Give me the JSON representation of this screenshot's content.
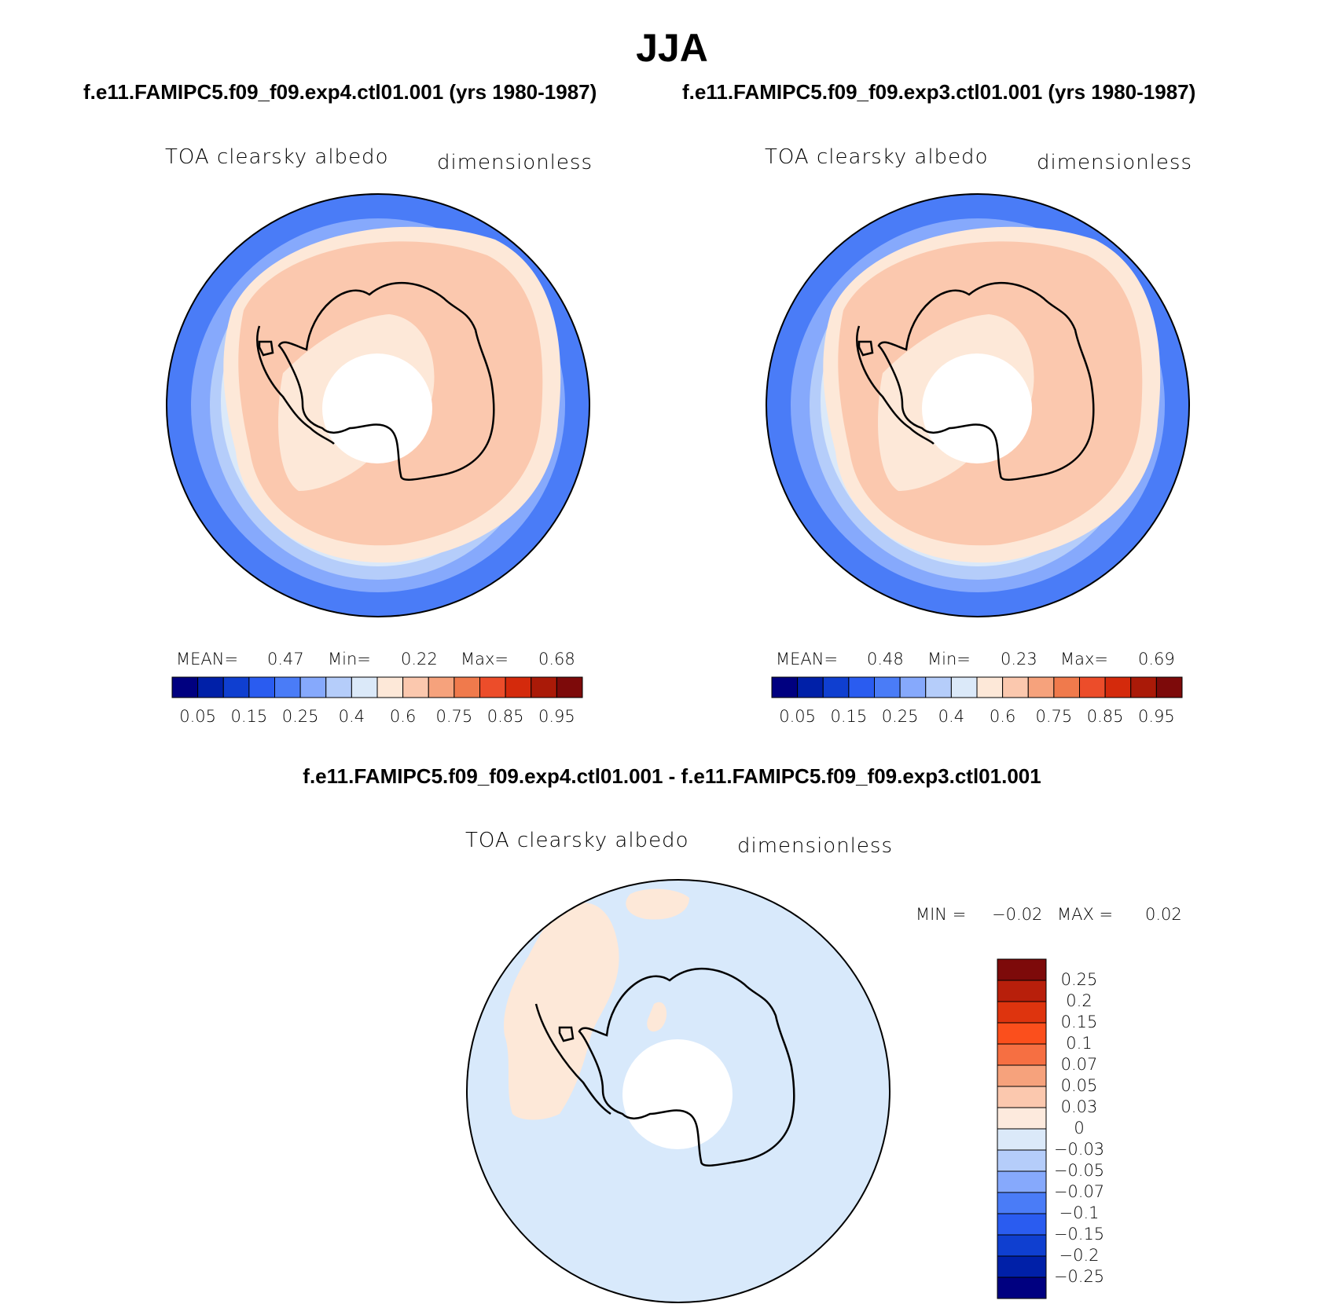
{
  "title": "JJA",
  "panels": [
    {
      "case_title": "f.e11.FAMIPC5.f09_f09.exp4.ctl01.001 (yrs 1980-1987)",
      "variable": "TOA clearsky albedo",
      "units": "dimensionless",
      "mean_label": "MEAN=",
      "mean_value": "0.47",
      "min_label": "Min=",
      "min_value": "0.22",
      "max_label": "Max=",
      "max_value": "0.68"
    },
    {
      "case_title": "f.e11.FAMIPC5.f09_f09.exp3.ctl01.001 (yrs 1980-1987)",
      "variable": "TOA clearsky albedo",
      "units": "dimensionless",
      "mean_label": "MEAN=",
      "mean_value": "0.48",
      "min_label": "Min=",
      "min_value": "0.23",
      "max_label": "Max=",
      "max_value": "0.69"
    }
  ],
  "field_colorbar": {
    "colors": [
      "#000080",
      "#0020a8",
      "#0f3fd0",
      "#2a5cf0",
      "#4a7cf7",
      "#86a9fc",
      "#b5cdfa",
      "#dbe9f9",
      "#fde8d8",
      "#fbc8ae",
      "#f6a27c",
      "#f07a4c",
      "#ec4d2a",
      "#d42a0c",
      "#aa1a08",
      "#7d0a0a"
    ],
    "labels": [
      "0.05",
      "0.15",
      "0.25",
      "0.4",
      "0.6",
      "0.75",
      "0.85",
      "0.95"
    ]
  },
  "diff": {
    "title": "f.e11.FAMIPC5.f09_f09.exp4.ctl01.001 - f.e11.FAMIPC5.f09_f09.exp3.ctl01.001",
    "variable": "TOA clearsky albedo",
    "units": "dimensionless",
    "min_label": "MIN =",
    "min_value": "−0.02",
    "max_label": "MAX =",
    "max_value": "0.02",
    "colorbar_colors_top_to_bottom": [
      "#7d0a0a",
      "#b81f0b",
      "#de340e",
      "#fb4f1c",
      "#f66f42",
      "#f6a27c",
      "#fbc8ae",
      "#fdeadd",
      "#dbe9f9",
      "#b5cdfa",
      "#86a9fc",
      "#4a7cf7",
      "#2a5cf0",
      "#0f3fd0",
      "#0020a8",
      "#000080"
    ],
    "colorbar_labels": [
      "0.25",
      "0.2",
      "0.15",
      "0.1",
      "0.07",
      "0.05",
      "0.03",
      "0",
      "−0.03",
      "−0.05",
      "−0.07",
      "−0.1",
      "−0.15",
      "−0.2",
      "−0.25"
    ]
  }
}
